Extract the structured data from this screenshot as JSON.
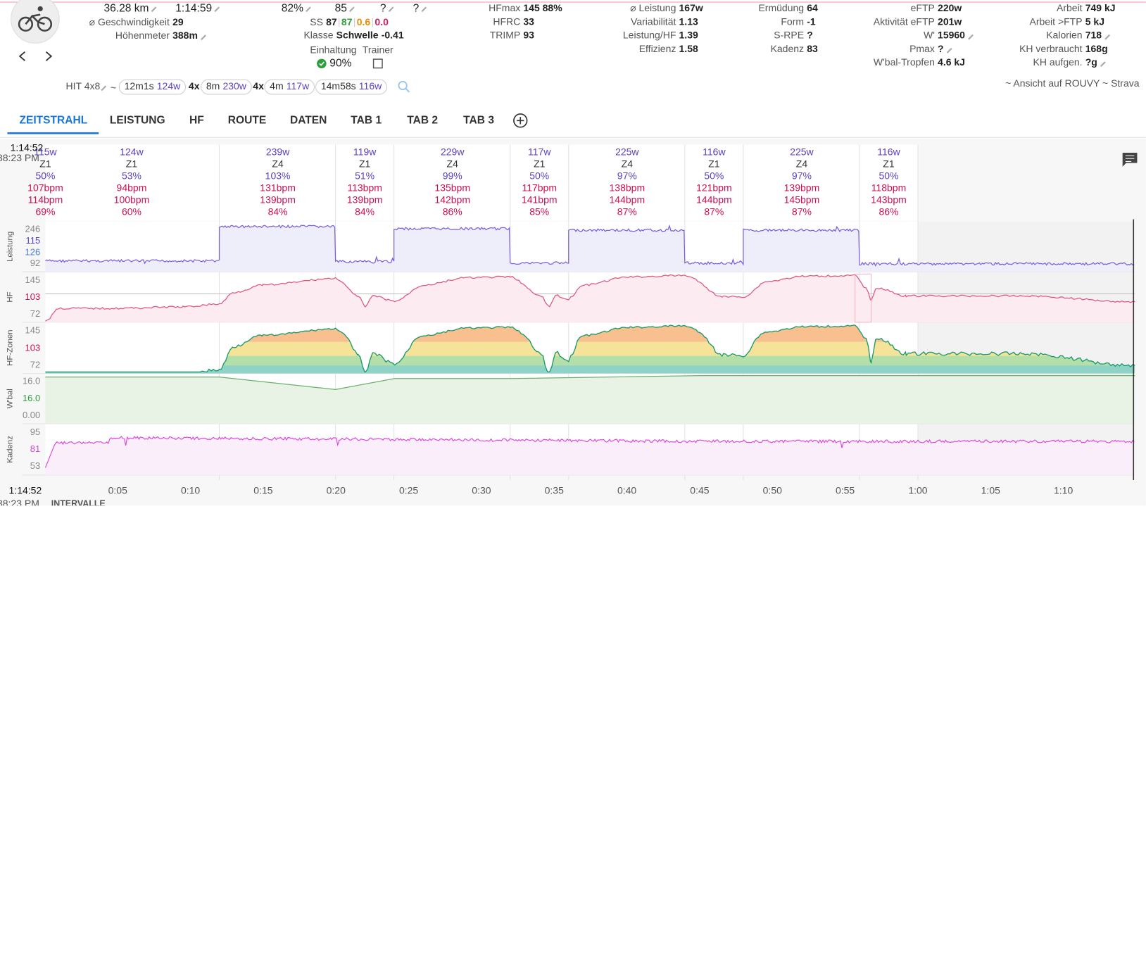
{
  "header": {
    "distance": "36.28 km",
    "duration": "1:14:59",
    "intensity": "82%",
    "load": "85",
    "rpe": "?",
    "feel": "?",
    "ss": {
      "label": "SS",
      "values": [
        "87",
        "87",
        "0.6",
        "0.0"
      ]
    },
    "klasse": {
      "label": "Klasse",
      "value": "Schwelle",
      "score": "-0.41"
    },
    "compliance": {
      "label": "Einhaltung",
      "value": "90%",
      "trainer": "Trainer"
    },
    "stats": [
      [
        {
          "label": "⌀ Geschwindigkeit",
          "value": "29"
        },
        {
          "label": "Höhenmeter",
          "value": "388m"
        }
      ],
      [
        {
          "label": "HFmax",
          "value": "145 88%"
        },
        {
          "label": "HFRC",
          "value": "33"
        },
        {
          "label": "TRIMP",
          "value": "93"
        }
      ],
      [
        {
          "label": "⌀ Leistung",
          "value": "167w"
        },
        {
          "label": "Variabilität",
          "value": "1.13"
        },
        {
          "label": "Leistung/HF",
          "value": "1.39"
        },
        {
          "label": "Effizienz",
          "value": "1.58"
        }
      ],
      [
        {
          "label": "Ermüdung",
          "value": "64"
        },
        {
          "label": "Form",
          "value": "-1"
        },
        {
          "label": "S-RPE",
          "value": "?"
        },
        {
          "label": "Kadenz",
          "value": "83"
        }
      ],
      [
        {
          "label": "eFTP",
          "value": "220w"
        },
        {
          "label": "Aktivität eFTP",
          "value": "201w"
        },
        {
          "label": "W'",
          "value": "15960"
        },
        {
          "label": "Pmax",
          "value": "?"
        },
        {
          "label": "W'bal-Tropfen",
          "value": "4.6 kJ"
        }
      ],
      [
        {
          "label": "Arbeit",
          "value": "749 kJ"
        },
        {
          "label": "Arbeit >FTP",
          "value": "5 kJ"
        },
        {
          "label": "Kalorien",
          "value": "718"
        },
        {
          "label": "KH verbraucht",
          "value": "168g"
        },
        {
          "label": "KH aufgen.",
          "value": "?g"
        }
      ]
    ]
  },
  "intervals_bar": {
    "name": "HIT 4x8",
    "sep": "~",
    "groups": [
      {
        "duration": "12m1s",
        "power": "124w"
      },
      {
        "reps": "4x",
        "duration": "8m",
        "power": "230w"
      },
      {
        "reps": "4x",
        "duration": "4m",
        "power": "117w"
      },
      {
        "duration": "14m58s",
        "power": "116w"
      }
    ],
    "links": "~ Ansicht auf ROUVY ~ Strava"
  },
  "tabs": [
    "ZEITSTRAHL",
    "LEISTUNG",
    "HF",
    "ROUTE",
    "DATEN",
    "TAB 1",
    "TAB 2",
    "TAB 3"
  ],
  "timeline": {
    "time": "1:14:52",
    "clock": "38:23 PM",
    "section": "INTERVALLE",
    "intervals": [
      {
        "power": "115w",
        "zone": "Z1",
        "pct": "50%",
        "hr_avg": "107bpm",
        "hr_max": "114bpm",
        "hr_pct": "69%"
      },
      {
        "power": "124w",
        "zone": "Z1",
        "pct": "53%",
        "hr_avg": "94bpm",
        "hr_max": "100bpm",
        "hr_pct": "60%"
      },
      {
        "power": "239w",
        "zone": "Z4",
        "pct": "103%",
        "hr_avg": "131bpm",
        "hr_max": "139bpm",
        "hr_pct": "84%"
      },
      {
        "power": "119w",
        "zone": "Z1",
        "pct": "51%",
        "hr_avg": "113bpm",
        "hr_max": "139bpm",
        "hr_pct": "84%"
      },
      {
        "power": "229w",
        "zone": "Z4",
        "pct": "99%",
        "hr_avg": "135bpm",
        "hr_max": "142bpm",
        "hr_pct": "86%"
      },
      {
        "power": "117w",
        "zone": "Z1",
        "pct": "50%",
        "hr_avg": "117bpm",
        "hr_max": "141bpm",
        "hr_pct": "85%"
      },
      {
        "power": "225w",
        "zone": "Z4",
        "pct": "97%",
        "hr_avg": "138bpm",
        "hr_max": "144bpm",
        "hr_pct": "87%"
      },
      {
        "power": "116w",
        "zone": "Z1",
        "pct": "50%",
        "hr_avg": "121bpm",
        "hr_max": "144bpm",
        "hr_pct": "87%"
      },
      {
        "power": "225w",
        "zone": "Z4",
        "pct": "97%",
        "hr_avg": "139bpm",
        "hr_max": "145bpm",
        "hr_pct": "87%"
      },
      {
        "power": "116w",
        "zone": "Z1",
        "pct": "50%",
        "hr_avg": "118bpm",
        "hr_max": "143bpm",
        "hr_pct": "86%"
      }
    ],
    "panels": [
      {
        "name": "Leistung",
        "ticks": [
          "246",
          "115",
          "126",
          "92"
        ]
      },
      {
        "name": "HF",
        "ticks": [
          "145",
          "103",
          "72"
        ]
      },
      {
        "name": "HF-Zonen",
        "ticks": [
          "145",
          "103",
          "72"
        ]
      },
      {
        "name": "W'bal",
        "ticks": [
          "16.0",
          "16.0",
          "0.00"
        ]
      },
      {
        "name": "Kadenz",
        "ticks": [
          "95",
          "81",
          "53"
        ]
      }
    ],
    "x_ticks": [
      "0:05",
      "0:10",
      "0:15",
      "0:20",
      "0:25",
      "0:30",
      "0:35",
      "0:40",
      "0:45",
      "0:50",
      "0:55",
      "1:00",
      "1:05",
      "1:10"
    ]
  }
}
